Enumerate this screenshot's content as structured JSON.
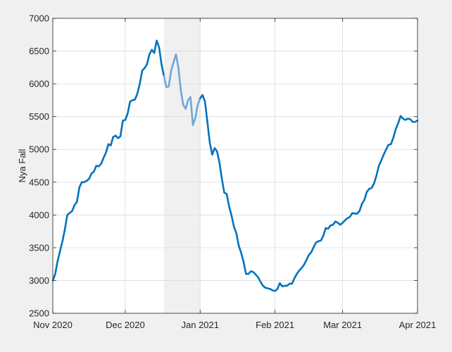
{
  "chart_data": {
    "type": "line",
    "title": "",
    "xlabel": "",
    "ylabel": "Nya Fall",
    "xlim": [
      "2020-11-01",
      "2021-04-01"
    ],
    "ylim": [
      2500,
      7000
    ],
    "grid": true,
    "x_ticks": [
      {
        "date": "2020-11-01",
        "label": "Nov 2020"
      },
      {
        "date": "2020-12-01",
        "label": "Dec 2020"
      },
      {
        "date": "2021-01-01",
        "label": "Jan 2021"
      },
      {
        "date": "2021-02-01",
        "label": "Feb 2021"
      },
      {
        "date": "2021-03-01",
        "label": "Mar 2021"
      },
      {
        "date": "2021-04-01",
        "label": "Apr 2021"
      }
    ],
    "y_ticks": [
      2500,
      3000,
      3500,
      4000,
      4500,
      5000,
      5500,
      6000,
      6500,
      7000
    ],
    "shaded_range": {
      "start": "2020-12-17",
      "end": "2021-01-01",
      "color": "#f0f0f0"
    },
    "series": [
      {
        "color": "#0072bd",
        "points": [
          [
            "2020-11-01",
            3000
          ],
          [
            "2020-11-02",
            3100
          ],
          [
            "2020-11-03",
            3300
          ],
          [
            "2020-11-04",
            3450
          ],
          [
            "2020-11-05",
            3600
          ],
          [
            "2020-11-06",
            3780
          ],
          [
            "2020-11-07",
            4000
          ],
          [
            "2020-11-08",
            4030
          ],
          [
            "2020-11-09",
            4060
          ],
          [
            "2020-11-10",
            4150
          ],
          [
            "2020-11-11",
            4200
          ],
          [
            "2020-11-12",
            4420
          ],
          [
            "2020-11-13",
            4500
          ],
          [
            "2020-11-14",
            4500
          ],
          [
            "2020-11-15",
            4520
          ],
          [
            "2020-11-16",
            4550
          ],
          [
            "2020-11-17",
            4630
          ],
          [
            "2020-11-18",
            4660
          ],
          [
            "2020-11-19",
            4750
          ],
          [
            "2020-11-20",
            4740
          ],
          [
            "2020-11-21",
            4780
          ],
          [
            "2020-11-22",
            4870
          ],
          [
            "2020-11-23",
            4950
          ],
          [
            "2020-11-24",
            5080
          ],
          [
            "2020-11-25",
            5060
          ],
          [
            "2020-11-26",
            5190
          ],
          [
            "2020-11-27",
            5210
          ],
          [
            "2020-11-28",
            5170
          ],
          [
            "2020-11-29",
            5200
          ],
          [
            "2020-11-30",
            5440
          ],
          [
            "2020-12-01",
            5450
          ],
          [
            "2020-12-02",
            5550
          ],
          [
            "2020-12-03",
            5730
          ],
          [
            "2020-12-04",
            5750
          ],
          [
            "2020-12-05",
            5760
          ],
          [
            "2020-12-06",
            5850
          ],
          [
            "2020-12-07",
            6000
          ],
          [
            "2020-12-08",
            6200
          ],
          [
            "2020-12-09",
            6240
          ],
          [
            "2020-12-10",
            6300
          ],
          [
            "2020-12-11",
            6450
          ],
          [
            "2020-12-12",
            6520
          ],
          [
            "2020-12-13",
            6470
          ],
          [
            "2020-12-14",
            6660
          ],
          [
            "2020-12-15",
            6560
          ],
          [
            "2020-12-16",
            6300
          ],
          [
            "2020-12-17",
            6120
          ]
        ]
      },
      {
        "color": "#6fa8d7",
        "points": [
          [
            "2020-12-17",
            6120
          ],
          [
            "2020-12-18",
            5950
          ],
          [
            "2020-12-19",
            5960
          ],
          [
            "2020-12-20",
            6200
          ],
          [
            "2020-12-21",
            6330
          ],
          [
            "2020-12-22",
            6450
          ],
          [
            "2020-12-23",
            6250
          ],
          [
            "2020-12-24",
            5900
          ],
          [
            "2020-12-25",
            5680
          ],
          [
            "2020-12-26",
            5620
          ],
          [
            "2020-12-27",
            5750
          ],
          [
            "2020-12-28",
            5800
          ],
          [
            "2020-12-29",
            5370
          ],
          [
            "2020-12-30",
            5480
          ],
          [
            "2020-12-31",
            5680
          ],
          [
            "2021-01-01",
            5780
          ]
        ]
      },
      {
        "color": "#0072bd",
        "points": [
          [
            "2021-01-01",
            5780
          ],
          [
            "2021-01-02",
            5830
          ],
          [
            "2021-01-03",
            5730
          ],
          [
            "2021-01-04",
            5420
          ],
          [
            "2021-01-05",
            5100
          ],
          [
            "2021-01-06",
            4920
          ],
          [
            "2021-01-07",
            5020
          ],
          [
            "2021-01-08",
            4970
          ],
          [
            "2021-01-09",
            4800
          ],
          [
            "2021-01-10",
            4550
          ],
          [
            "2021-01-11",
            4340
          ],
          [
            "2021-01-12",
            4320
          ],
          [
            "2021-01-13",
            4130
          ],
          [
            "2021-01-14",
            3990
          ],
          [
            "2021-01-15",
            3820
          ],
          [
            "2021-01-16",
            3720
          ],
          [
            "2021-01-17",
            3530
          ],
          [
            "2021-01-18",
            3420
          ],
          [
            "2021-01-19",
            3280
          ],
          [
            "2021-01-20",
            3100
          ],
          [
            "2021-01-21",
            3100
          ],
          [
            "2021-01-22",
            3140
          ],
          [
            "2021-01-23",
            3130
          ],
          [
            "2021-01-24",
            3090
          ],
          [
            "2021-01-25",
            3050
          ],
          [
            "2021-01-26",
            2980
          ],
          [
            "2021-01-27",
            2920
          ],
          [
            "2021-01-28",
            2890
          ],
          [
            "2021-01-29",
            2880
          ],
          [
            "2021-01-30",
            2870
          ],
          [
            "2021-01-31",
            2850
          ],
          [
            "2021-02-01",
            2840
          ],
          [
            "2021-02-02",
            2870
          ],
          [
            "2021-02-03",
            2960
          ],
          [
            "2021-02-04",
            2910
          ],
          [
            "2021-02-05",
            2920
          ],
          [
            "2021-02-06",
            2920
          ],
          [
            "2021-02-07",
            2950
          ],
          [
            "2021-02-08",
            2950
          ],
          [
            "2021-02-09",
            3030
          ],
          [
            "2021-02-10",
            3100
          ],
          [
            "2021-02-11",
            3150
          ],
          [
            "2021-02-12",
            3190
          ],
          [
            "2021-02-13",
            3240
          ],
          [
            "2021-02-14",
            3310
          ],
          [
            "2021-02-15",
            3390
          ],
          [
            "2021-02-16",
            3430
          ],
          [
            "2021-02-17",
            3510
          ],
          [
            "2021-02-18",
            3580
          ],
          [
            "2021-02-19",
            3600
          ],
          [
            "2021-02-20",
            3610
          ],
          [
            "2021-02-21",
            3680
          ],
          [
            "2021-02-22",
            3800
          ],
          [
            "2021-02-23",
            3790
          ],
          [
            "2021-02-24",
            3840
          ],
          [
            "2021-02-25",
            3850
          ],
          [
            "2021-02-26",
            3900
          ],
          [
            "2021-02-27",
            3880
          ],
          [
            "2021-02-28",
            3850
          ],
          [
            "2021-03-01",
            3880
          ],
          [
            "2021-03-02",
            3920
          ],
          [
            "2021-03-03",
            3950
          ],
          [
            "2021-03-04",
            3970
          ],
          [
            "2021-03-05",
            4030
          ],
          [
            "2021-03-06",
            4020
          ],
          [
            "2021-03-07",
            4020
          ],
          [
            "2021-03-08",
            4060
          ],
          [
            "2021-03-09",
            4170
          ],
          [
            "2021-03-10",
            4230
          ],
          [
            "2021-03-11",
            4350
          ],
          [
            "2021-03-12",
            4400
          ],
          [
            "2021-03-13",
            4410
          ],
          [
            "2021-03-14",
            4480
          ],
          [
            "2021-03-15",
            4600
          ],
          [
            "2021-03-16",
            4750
          ],
          [
            "2021-03-17",
            4830
          ],
          [
            "2021-03-18",
            4920
          ],
          [
            "2021-03-19",
            5000
          ],
          [
            "2021-03-20",
            5070
          ],
          [
            "2021-03-21",
            5080
          ],
          [
            "2021-03-22",
            5180
          ],
          [
            "2021-03-23",
            5310
          ],
          [
            "2021-03-24",
            5400
          ],
          [
            "2021-03-25",
            5510
          ],
          [
            "2021-03-26",
            5470
          ],
          [
            "2021-03-27",
            5450
          ],
          [
            "2021-03-28",
            5470
          ],
          [
            "2021-03-29",
            5460
          ],
          [
            "2021-03-30",
            5420
          ],
          [
            "2021-03-31",
            5420
          ],
          [
            "2021-04-01",
            5440
          ]
        ]
      }
    ]
  }
}
